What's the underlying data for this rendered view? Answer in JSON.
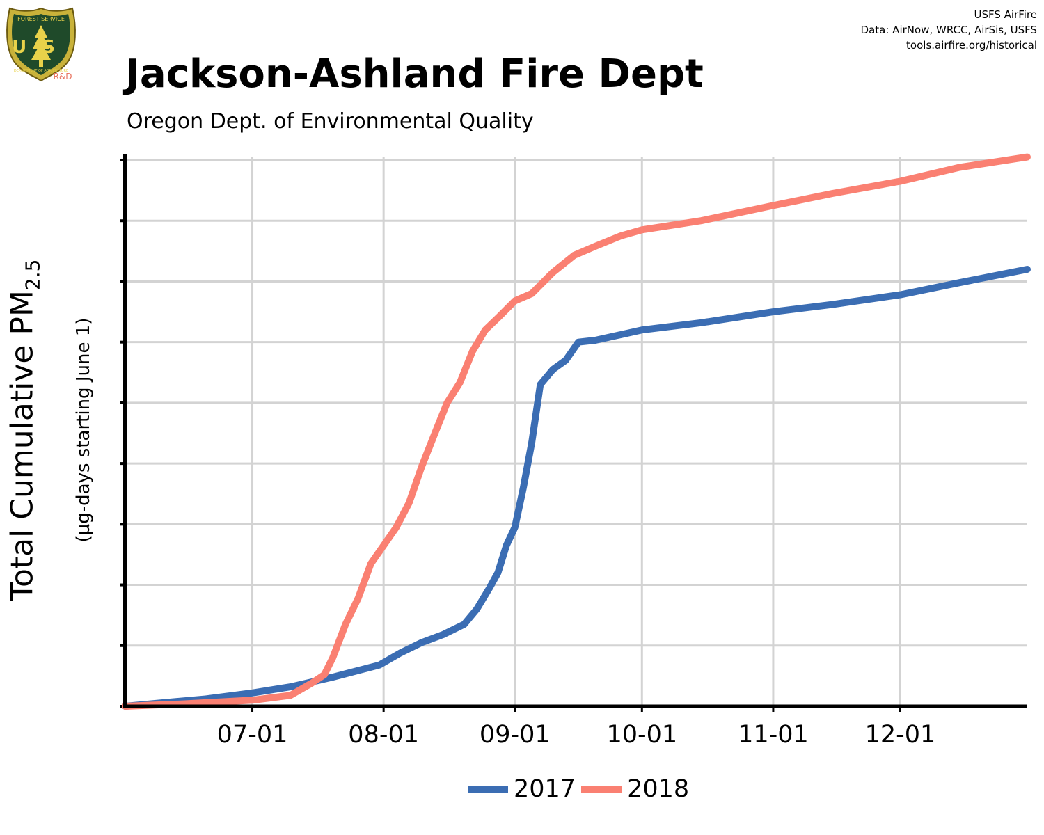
{
  "credits": {
    "line1": "USFS AirFire",
    "line2": "Data: AirNow, WRCC, AirSis, USFS",
    "line3": "tools.airfire.org/historical"
  },
  "logo": {
    "text_top": "FOREST SERVICE",
    "text_mid": "US",
    "text_bottom": "DEPARTMENT OF AGRICULTURE",
    "badge": "R&D"
  },
  "title": "Jackson-Ashland Fire Dept",
  "subtitle": "Oregon Dept. of Environmental Quality",
  "colors": {
    "2017": "#3b6db3",
    "2018": "#fa8072",
    "grid": "#d3d3d3"
  },
  "chart_data": {
    "type": "line",
    "ylabel_main": "Total Cumulative PM",
    "ylabel_sub": "2.5",
    "ylabel_units": "(µg-days starting June 1)",
    "x_ticks": [
      "07-01",
      "08-01",
      "09-01",
      "10-01",
      "11-01",
      "12-01"
    ],
    "xlim": [
      "06-01",
      "12-31"
    ],
    "ylim": [
      0,
      9
    ],
    "y_tick_count": 10,
    "y_tick_labels_shown": false,
    "grid": true,
    "legend": "bottom",
    "series": [
      {
        "name": "2017",
        "points": [
          [
            "06-01",
            0.0
          ],
          [
            "06-10",
            0.06
          ],
          [
            "06-20",
            0.12
          ],
          [
            "07-01",
            0.22
          ],
          [
            "07-10",
            0.32
          ],
          [
            "07-20",
            0.48
          ],
          [
            "07-31",
            0.68
          ],
          [
            "08-05",
            0.88
          ],
          [
            "08-10",
            1.05
          ],
          [
            "08-15",
            1.18
          ],
          [
            "08-20",
            1.35
          ],
          [
            "08-23",
            1.6
          ],
          [
            "08-26",
            1.95
          ],
          [
            "08-28",
            2.2
          ],
          [
            "08-30",
            2.65
          ],
          [
            "09-01",
            2.95
          ],
          [
            "09-03",
            3.6
          ],
          [
            "09-05",
            4.35
          ],
          [
            "09-07",
            5.3
          ],
          [
            "09-10",
            5.55
          ],
          [
            "09-13",
            5.7
          ],
          [
            "09-16",
            6.0
          ],
          [
            "09-20",
            6.03
          ],
          [
            "10-01",
            6.2
          ],
          [
            "10-15",
            6.32
          ],
          [
            "11-01",
            6.5
          ],
          [
            "11-15",
            6.62
          ],
          [
            "12-01",
            6.78
          ],
          [
            "12-15",
            6.98
          ],
          [
            "12-31",
            7.2
          ]
        ]
      },
      {
        "name": "2018",
        "points": [
          [
            "06-01",
            0.0
          ],
          [
            "06-15",
            0.04
          ],
          [
            "07-01",
            0.1
          ],
          [
            "07-10",
            0.18
          ],
          [
            "07-15",
            0.38
          ],
          [
            "07-18",
            0.52
          ],
          [
            "07-20",
            0.8
          ],
          [
            "07-23",
            1.35
          ],
          [
            "07-26",
            1.78
          ],
          [
            "07-29",
            2.35
          ],
          [
            "08-01",
            2.65
          ],
          [
            "08-04",
            2.95
          ],
          [
            "08-07",
            3.35
          ],
          [
            "08-10",
            3.95
          ],
          [
            "08-13",
            4.48
          ],
          [
            "08-16",
            5.0
          ],
          [
            "08-19",
            5.33
          ],
          [
            "08-22",
            5.85
          ],
          [
            "08-25",
            6.2
          ],
          [
            "08-28",
            6.4
          ],
          [
            "09-01",
            6.68
          ],
          [
            "09-05",
            6.8
          ],
          [
            "09-10",
            7.15
          ],
          [
            "09-15",
            7.43
          ],
          [
            "09-20",
            7.58
          ],
          [
            "09-26",
            7.75
          ],
          [
            "10-01",
            7.85
          ],
          [
            "10-15",
            8.0
          ],
          [
            "11-01",
            8.25
          ],
          [
            "11-15",
            8.45
          ],
          [
            "12-01",
            8.65
          ],
          [
            "12-15",
            8.88
          ],
          [
            "12-31",
            9.05
          ]
        ]
      }
    ]
  }
}
